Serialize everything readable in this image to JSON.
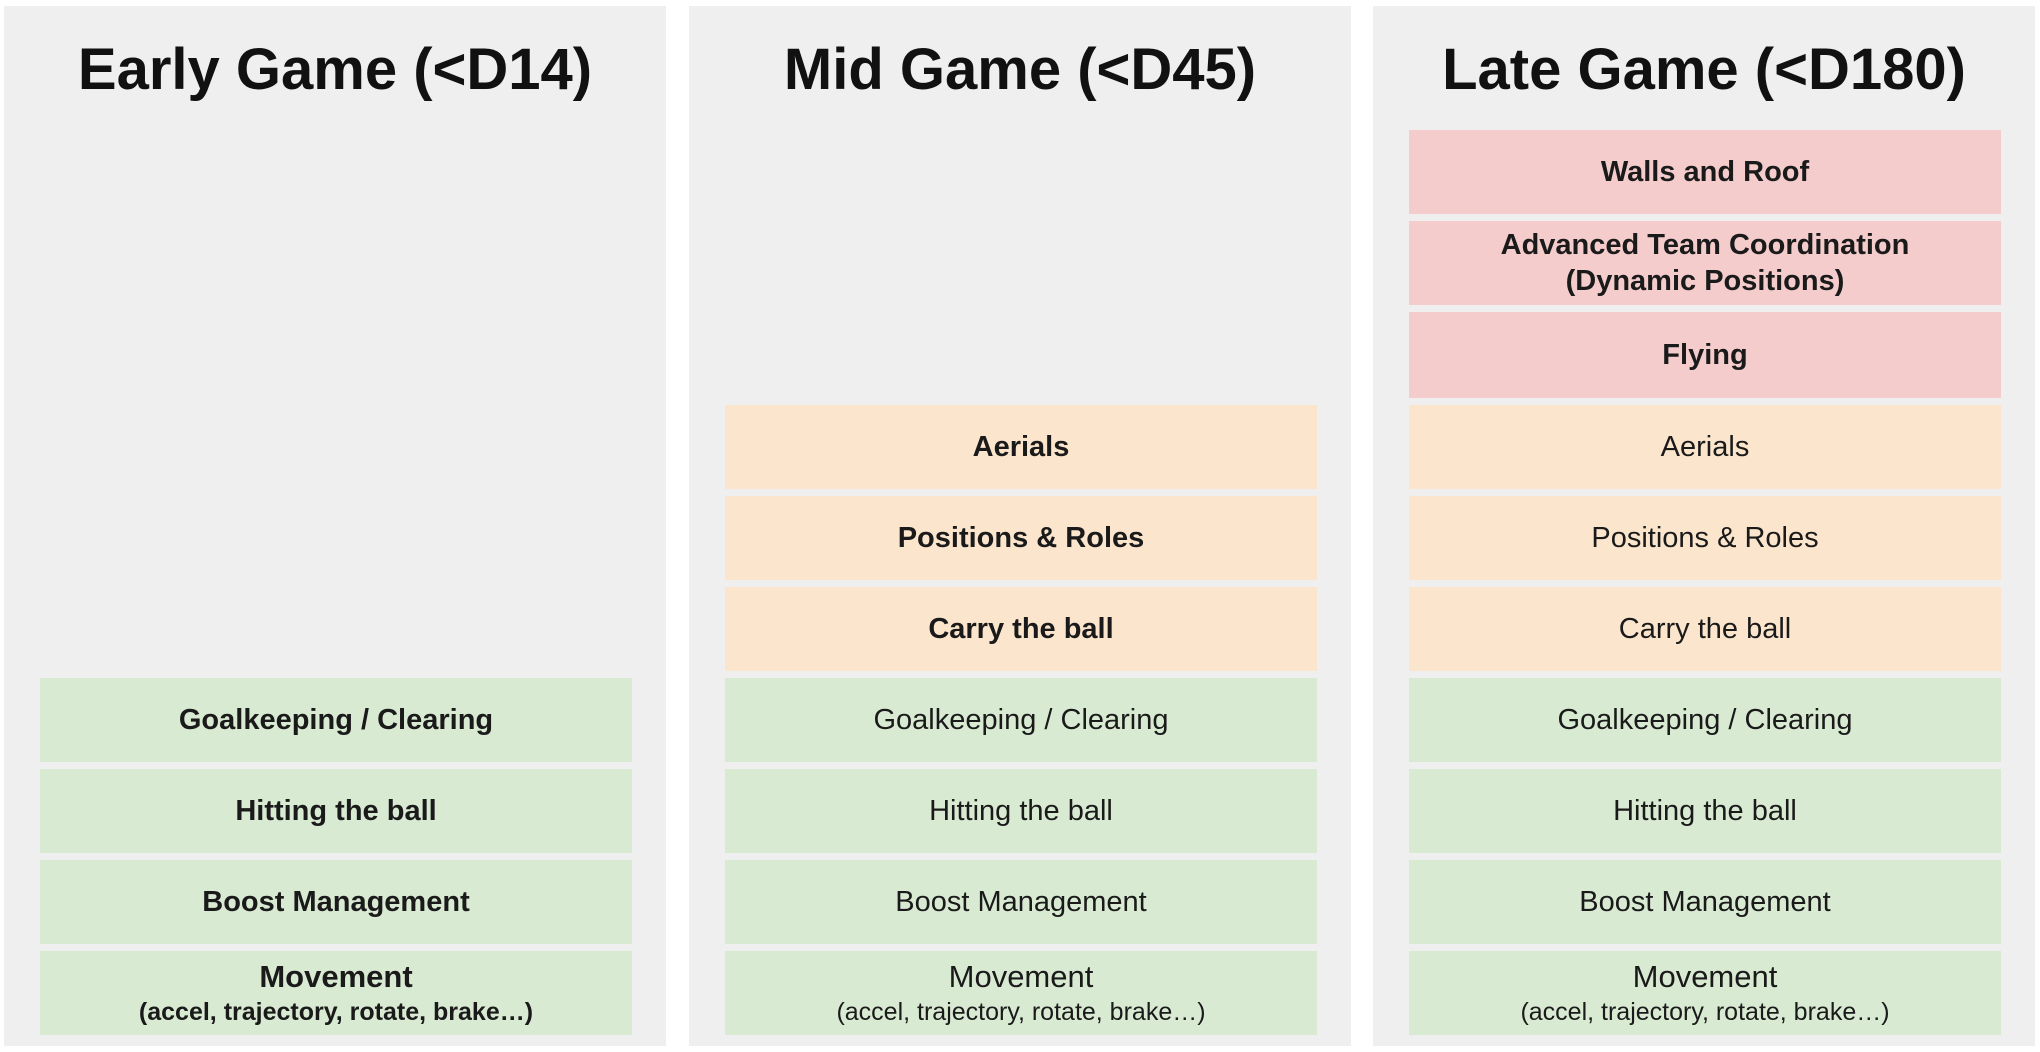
{
  "columns": [
    {
      "title": "Early Game (<D14)",
      "blocks": [
        {
          "label": "Goalkeeping / Clearing"
        },
        {
          "label": "Hitting the ball"
        },
        {
          "label": "Boost Management"
        },
        {
          "label": "Movement",
          "sub": "(accel, trajectory, rotate, brake…)"
        }
      ]
    },
    {
      "title": "Mid Game (<D45)",
      "blocks": [
        {
          "label": "Aerials"
        },
        {
          "label": "Positions & Roles"
        },
        {
          "label": "Carry the ball"
        },
        {
          "label": "Goalkeeping / Clearing"
        },
        {
          "label": "Hitting the ball"
        },
        {
          "label": "Boost Management"
        },
        {
          "label": "Movement",
          "sub": "(accel, trajectory, rotate, brake…)"
        }
      ]
    },
    {
      "title": "Late Game (<D180)",
      "blocks": [
        {
          "label": "Walls and Roof"
        },
        {
          "label": "Advanced Team Coordination",
          "line2": "(Dynamic Positions)"
        },
        {
          "label": "Flying"
        },
        {
          "label": "Aerials"
        },
        {
          "label": "Positions & Roles"
        },
        {
          "label": "Carry the ball"
        },
        {
          "label": "Goalkeeping / Clearing"
        },
        {
          "label": "Hitting the ball"
        },
        {
          "label": "Boost Management"
        },
        {
          "label": "Movement",
          "sub": "(accel, trajectory, rotate, brake…)"
        }
      ]
    }
  ],
  "colors": {
    "panel": "#efefef",
    "basic": "#d9ead3",
    "intermediate": "#fce5cd",
    "advanced": "#f4cccc"
  }
}
